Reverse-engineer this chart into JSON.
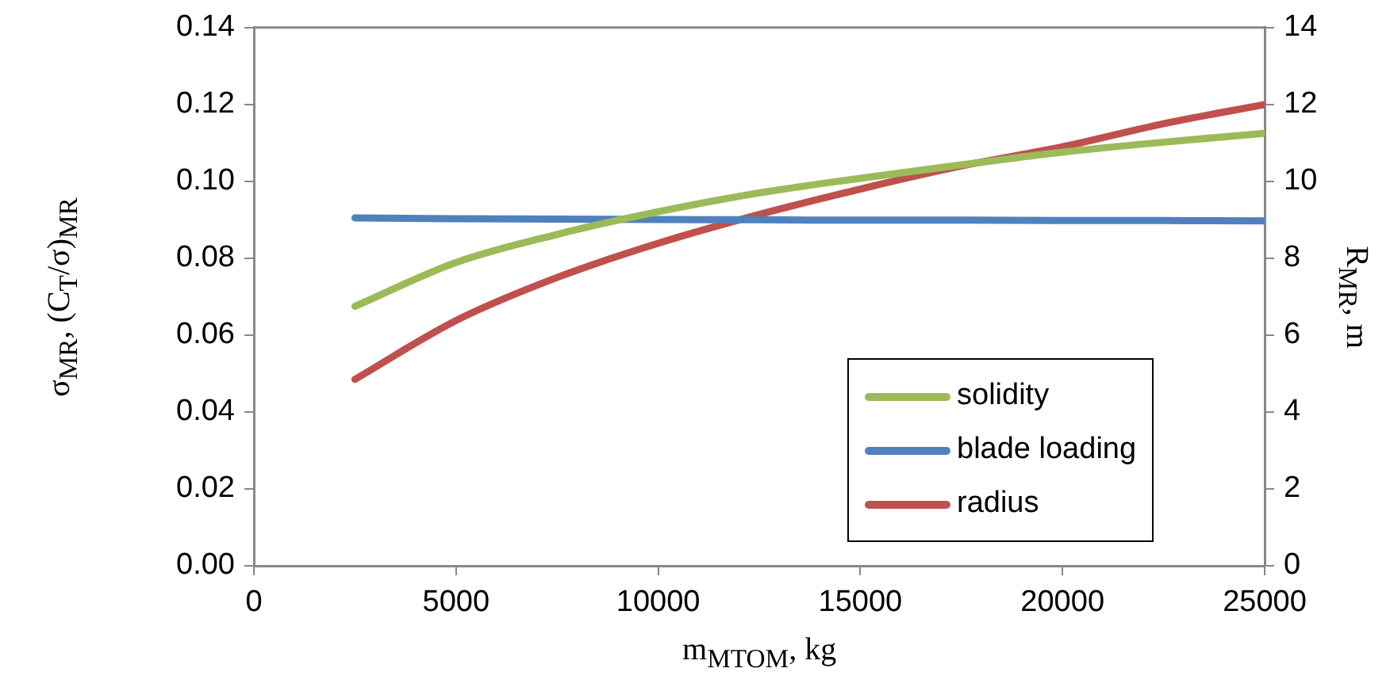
{
  "chart_data": {
    "type": "line",
    "xlabel": "m$_{MTOM}$, kg",
    "ylabel": "σ$_{MR}$, (C$_{T}$/σ)$_{MR}$",
    "y2label": "R$_{MR}$, m",
    "x": [
      2500,
      5000,
      7500,
      10000,
      12500,
      15000,
      17500,
      20000,
      22500,
      25000
    ],
    "series": [
      {
        "name": "solidity",
        "color": "#9bbb59",
        "values": [
          0.0675,
          0.0789,
          0.0862,
          0.0921,
          0.097,
          0.1008,
          0.1043,
          0.1076,
          0.1102,
          0.1125
        ]
      },
      {
        "name": "blade loading",
        "color": "#4f81bd",
        "values": [
          0.0905,
          0.0903,
          0.0902,
          0.0901,
          0.09,
          0.0899,
          0.0899,
          0.0898,
          0.0898,
          0.0897
        ]
      },
      {
        "name": "radius",
        "color": "#c0504d",
        "axis": "y2",
        "values": [
          4.85,
          6.38,
          7.5,
          8.39,
          9.14,
          9.8,
          10.4,
          10.9,
          11.5,
          12.0
        ]
      }
    ],
    "xlim": [
      0,
      25000
    ],
    "xticks": [
      0,
      5000,
      10000,
      15000,
      20000,
      25000
    ],
    "ylim": [
      0,
      0.14
    ],
    "yticks": [
      {
        "value": 0,
        "label": "0.00"
      },
      {
        "value": 0.02,
        "label": "0.02"
      },
      {
        "value": 0.04,
        "label": "0.04"
      },
      {
        "value": 0.06,
        "label": "0.06"
      },
      {
        "value": 0.08,
        "label": "0.08"
      },
      {
        "value": 0.1,
        "label": "0.10"
      },
      {
        "value": 0.12,
        "label": "0.12"
      },
      {
        "value": 0.14,
        "label": "0.14"
      }
    ],
    "y2lim": [
      0,
      14
    ],
    "y2ticks": [
      0,
      2,
      4,
      6,
      8,
      10,
      12,
      14
    ],
    "grid": false,
    "legend": "bottom right",
    "marker": "none",
    "line_style": "solid"
  }
}
